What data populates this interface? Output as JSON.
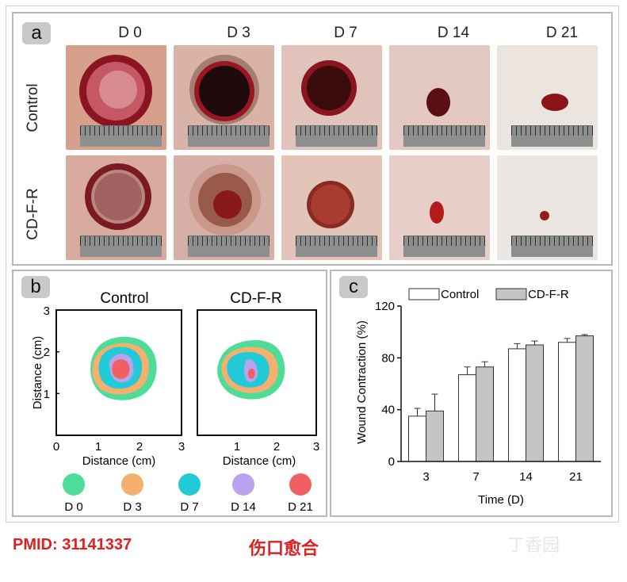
{
  "panel_a": {
    "label": "a",
    "days": [
      "D 0",
      "D 3",
      "D 7",
      "D 14",
      "D 21"
    ],
    "rows": [
      "Control",
      "CD-F-R"
    ]
  },
  "panel_b": {
    "label": "b",
    "maps": [
      {
        "title": "Control"
      },
      {
        "title": "CD-F-R"
      }
    ],
    "x_label": "Distance (cm)",
    "y_label": "Distance (cm)",
    "ticks": [
      "0",
      "1",
      "2",
      "3"
    ],
    "legend": [
      {
        "label": "D 0",
        "color": "#4fdc97"
      },
      {
        "label": "D 3",
        "color": "#f5b070"
      },
      {
        "label": "D 7",
        "color": "#22c9d6"
      },
      {
        "label": "D 14",
        "color": "#b9a2ee"
      },
      {
        "label": "D 21",
        "color": "#f06060"
      }
    ]
  },
  "chart_data": {
    "type": "bar",
    "label": "c",
    "categories": [
      "3",
      "7",
      "14",
      "21"
    ],
    "series": [
      {
        "name": "Control",
        "color": "#ffffff",
        "values": [
          35,
          67,
          87,
          92
        ],
        "errors": [
          6,
          6,
          4,
          3
        ]
      },
      {
        "name": "CD-F-R",
        "color": "#c4c4c6",
        "values": [
          39,
          73,
          90,
          97
        ],
        "errors": [
          13,
          4,
          3,
          1
        ]
      }
    ],
    "xlabel": "Time (D)",
    "ylabel": "Wound Contraction (%)",
    "ylim": [
      0,
      120
    ],
    "yticks": [
      0,
      40,
      80,
      120
    ],
    "legend_position": "top"
  },
  "footer": {
    "pmid": "PMID: 31141337",
    "caption": "伤口愈合",
    "watermark": "丁香园"
  }
}
